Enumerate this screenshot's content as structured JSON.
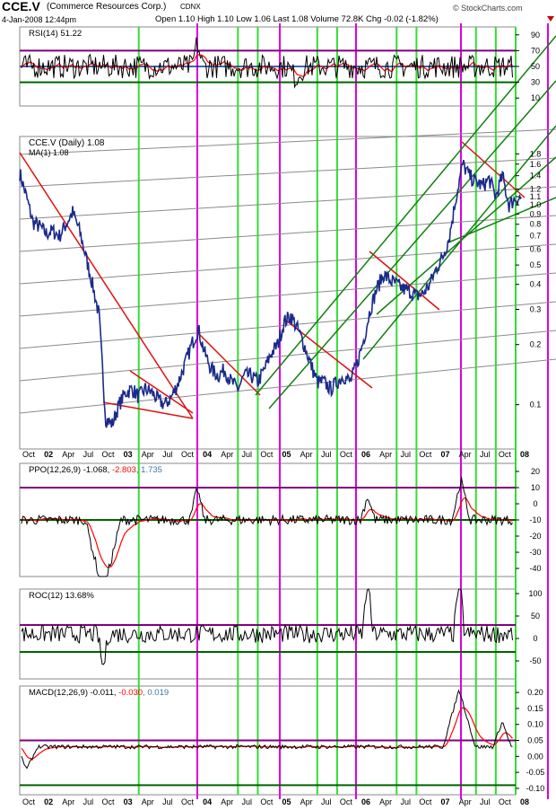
{
  "header": {
    "symbol": "CCE.V",
    "company": "(Commerce Resources Corp.)",
    "exchange": "CDNX",
    "date": "4-Jan-2008 12:44pm",
    "quote": "Open 1.10  High 1.10  Low 1.06  Last 1.08  Volume 72.8K  Chg -0.02 (-1.82%)",
    "watermark": "© StockCharts.com",
    "marker_icon": "down-triangle-icon"
  },
  "colors": {
    "price": "#1a2a8c",
    "trend_down": "#e01010",
    "trend_up": "#108010",
    "fan": "#8a8a8a",
    "green_vertical": "#33dd33",
    "magenta_vertical": "#dd00dd",
    "overbought": "#800080",
    "oversold": "#006400",
    "signal": "#ff0000",
    "hist": "#3a78a8"
  },
  "x_axis": {
    "ticks": [
      "Oct",
      "02",
      "Apr",
      "Jul",
      "Oct",
      "03",
      "Apr",
      "Jul",
      "Oct",
      "04",
      "Apr",
      "Jul",
      "Oct",
      "05",
      "Apr",
      "Jul",
      "Oct",
      "06",
      "Apr",
      "Jul",
      "Oct",
      "07",
      "Apr",
      "Jul",
      "Oct",
      "08"
    ],
    "bold_ticks": [
      "02",
      "03",
      "04",
      "05",
      "06",
      "07",
      "08"
    ],
    "range": [
      "Oct 2001",
      "Jan 2008"
    ]
  },
  "chart_data": [
    {
      "type": "line",
      "panel": "RSI",
      "title": "RSI(14) 51.22",
      "yticks": [
        "90",
        "70",
        "50",
        "30",
        "10"
      ],
      "ylim": [
        0,
        100
      ],
      "reference_lines": [
        30,
        50,
        70
      ]
    },
    {
      "type": "line",
      "panel": "price",
      "title": "CCE.V (Daily) 1.08",
      "legend": "MA(1) 1.08",
      "scale": "log",
      "yticks": [
        "1.8",
        "1.6",
        "1.4",
        "1.2",
        "1.1",
        "1.0",
        "0.9",
        "0.8",
        "0.7",
        "0.6",
        "0.5",
        "0.4",
        "0.3",
        "0.2",
        "0.1"
      ],
      "ylim": [
        0.06,
        2.2
      ],
      "series": [
        {
          "name": "CCE.V (Daily)",
          "x": [
            "Oct 2001",
            "Nov 2001",
            "Dec 2001",
            "Jan 2002",
            "Feb 2002",
            "Mar 2002",
            "Apr 2002",
            "May 2002",
            "Jun 2002",
            "Jul 2002",
            "Aug 2002",
            "Sep 2002",
            "Oct 2002",
            "Nov 2002",
            "Dec 2002",
            "Jan 2003",
            "Feb 2003",
            "Mar 2003",
            "Apr 2003",
            "May 2003",
            "Jun 2003",
            "Jul 2003",
            "Aug 2003",
            "Sep 2003",
            "Oct 2003",
            "Nov 2003",
            "Dec 2003",
            "Jan 2004",
            "Feb 2004",
            "Mar 2004",
            "Apr 2004",
            "May 2004",
            "Jun 2004",
            "Jul 2004",
            "Aug 2004",
            "Sep 2004",
            "Oct 2004",
            "Nov 2004",
            "Dec 2004",
            "Jan 2005",
            "Feb 2005",
            "Mar 2005",
            "Apr 2005",
            "May 2005",
            "Jun 2005",
            "Jul 2005",
            "Aug 2005",
            "Sep 2005",
            "Oct 2005",
            "Nov 2005",
            "Dec 2005",
            "Jan 2006",
            "Feb 2006",
            "Mar 2006",
            "Apr 2006",
            "May 2006",
            "Jun 2006",
            "Jul 2006",
            "Aug 2006",
            "Sep 2006",
            "Oct 2006",
            "Nov 2006",
            "Dec 2006",
            "Jan 2007",
            "Feb 2007",
            "Mar 2007",
            "Apr 2007",
            "May 2007",
            "Jun 2007",
            "Jul 2007",
            "Aug 2007",
            "Sep 2007",
            "Oct 2007",
            "Nov 2007",
            "Dec 2007",
            "Jan 2008"
          ],
          "values": [
            1.45,
            1.1,
            0.82,
            0.78,
            0.72,
            0.74,
            0.7,
            0.8,
            0.92,
            0.75,
            0.55,
            0.4,
            0.28,
            0.085,
            0.08,
            0.1,
            0.115,
            0.12,
            0.11,
            0.12,
            0.115,
            0.105,
            0.1,
            0.11,
            0.13,
            0.16,
            0.2,
            0.24,
            0.18,
            0.15,
            0.14,
            0.15,
            0.13,
            0.12,
            0.14,
            0.14,
            0.13,
            0.15,
            0.18,
            0.2,
            0.26,
            0.28,
            0.24,
            0.2,
            0.16,
            0.13,
            0.13,
            0.12,
            0.13,
            0.14,
            0.13,
            0.16,
            0.21,
            0.3,
            0.38,
            0.45,
            0.42,
            0.4,
            0.38,
            0.37,
            0.35,
            0.36,
            0.4,
            0.48,
            0.55,
            0.7,
            1.1,
            1.6,
            1.4,
            1.3,
            1.25,
            1.35,
            1.1,
            1.4,
            1.0,
            1.08
          ]
        }
      ]
    },
    {
      "type": "line",
      "panel": "PPO",
      "title": "PPO(12,26,9) -1.068, -2.803, 1.735",
      "title_parts": [
        "PPO(12,26,9) -1.068, ",
        "-2.803",
        ", 1.735"
      ],
      "yticks": [
        "20",
        "10",
        "0",
        "-10",
        "-20",
        "-30",
        "-40"
      ],
      "ylim": [
        -45,
        25
      ],
      "reference_lines": [
        -10,
        10
      ]
    },
    {
      "type": "line",
      "panel": "ROC",
      "title": "ROC(12) 13.68%",
      "yticks": [
        "100",
        "50",
        "0",
        "-50"
      ],
      "ylim": [
        -90,
        110
      ],
      "reference_lines": [
        -30,
        30
      ]
    },
    {
      "type": "line",
      "panel": "MACD",
      "title": "MACD(12,26,9) -0.011, -0.030, 0.019",
      "title_parts": [
        "MACD(12,26,9) -0.011, ",
        "-0.030",
        ", 0.019"
      ],
      "yticks": [
        "0.20",
        "0.15",
        "0.10",
        "0.05",
        "0.00",
        "-0.05",
        "-0.10"
      ],
      "ylim": [
        -0.12,
        0.22
      ],
      "reference_lines": [
        -0.09,
        0.05
      ]
    }
  ]
}
